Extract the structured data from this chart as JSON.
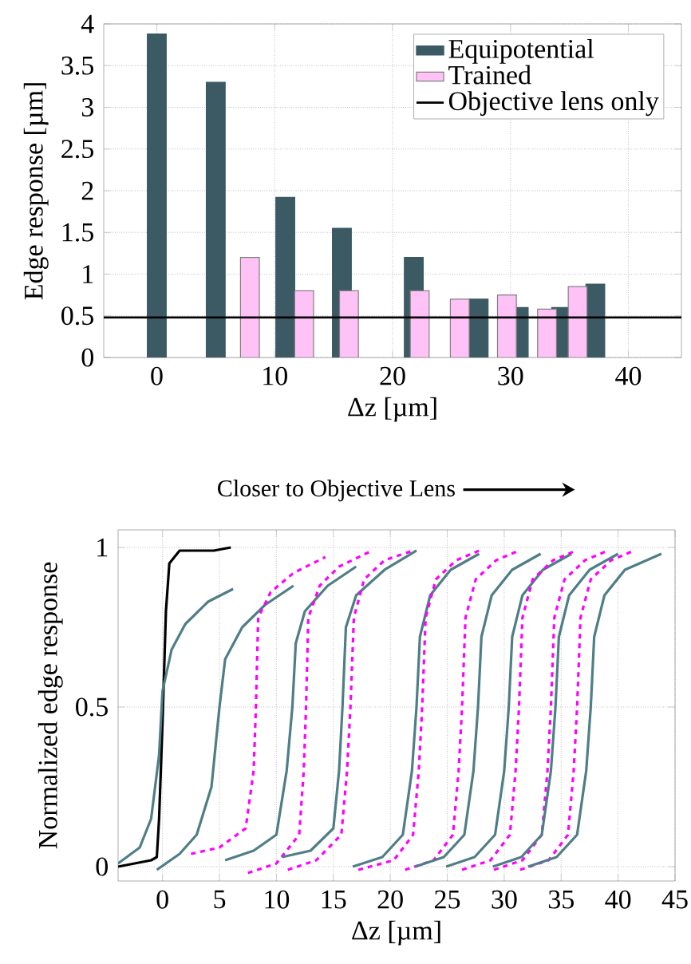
{
  "chart_data": [
    {
      "type": "bar",
      "xlabel": "Δz [µm]",
      "ylabel": "Edge response [µm]",
      "xlim": [
        -4.5,
        44.5
      ],
      "ylim": [
        0,
        4
      ],
      "xticks": [
        0,
        10,
        20,
        30,
        40
      ],
      "yticks": [
        0,
        0.5,
        1,
        1.5,
        2,
        2.5,
        3,
        3.5,
        4
      ],
      "grid": true,
      "legend": "top right",
      "series": [
        {
          "name": "Equipotential",
          "color": "#3b5a63",
          "x": [
            0,
            5,
            10.9,
            15.7,
            21.8,
            27.3,
            30.7,
            34.3,
            37.2
          ],
          "values": [
            3.88,
            3.3,
            1.92,
            1.55,
            1.2,
            0.7,
            0.6,
            0.6,
            0.88
          ]
        },
        {
          "name": "Trained",
          "color": "#ffc2f7",
          "x": [
            7.9,
            12.5,
            16.3,
            22.3,
            25.7,
            29.7,
            33.1,
            35.7
          ],
          "values": [
            1.2,
            0.8,
            0.8,
            0.8,
            0.7,
            0.75,
            0.58,
            0.85
          ]
        }
      ],
      "ref_lines": [
        {
          "axis": "y",
          "value": 0.48,
          "label": "Objective lens only",
          "color": "#000000"
        }
      ]
    },
    {
      "type": "line",
      "title": "Closer to Objective Lens",
      "xlabel": "Δz [µm]",
      "ylabel": "Normalized edge response",
      "xlim": [
        -3.9,
        45
      ],
      "ylim": [
        -0.045,
        1.055
      ],
      "xticks": [
        0,
        5,
        10,
        15,
        20,
        25,
        30,
        35,
        40,
        45
      ],
      "yticks": [
        0,
        0.5,
        1
      ],
      "grid": true,
      "series": [
        {
          "color": "#000000",
          "line_style": "solid",
          "x": [
            -3.9,
            -1,
            -0.5,
            -0.3,
            0,
            0.3,
            0.6,
            1.5,
            3,
            4.5,
            6
          ],
          "values": [
            0,
            0.02,
            0.03,
            0.15,
            0.45,
            0.8,
            0.95,
            0.99,
            0.99,
            0.99,
            1.0
          ]
        },
        {
          "color": "#4f7e87",
          "line_style": "solid",
          "x": [
            -3.9,
            -2,
            -1,
            -0.3,
            0,
            0.8,
            2,
            4,
            6.2
          ],
          "values": [
            0.01,
            0.06,
            0.15,
            0.35,
            0.55,
            0.68,
            0.76,
            0.83,
            0.87
          ]
        },
        {
          "color": "#4f7e87",
          "line_style": "solid",
          "x": [
            -0.5,
            1.5,
            3,
            4.3,
            5,
            5.5,
            7,
            9,
            11.5
          ],
          "values": [
            -0.01,
            0.04,
            0.1,
            0.25,
            0.5,
            0.65,
            0.75,
            0.82,
            0.88
          ]
        },
        {
          "color": "#ff00ff",
          "line_style": "dashed",
          "x": [
            2.5,
            5,
            7.3,
            8,
            8.2,
            8.4,
            9.5,
            11.5,
            14.3
          ],
          "values": [
            0.04,
            0.06,
            0.12,
            0.3,
            0.5,
            0.78,
            0.86,
            0.92,
            0.97
          ]
        },
        {
          "color": "#4f7e87",
          "line_style": "solid",
          "x": [
            5.5,
            8,
            10,
            10.9,
            11.4,
            11.7,
            12.5,
            14.5,
            17
          ],
          "values": [
            0.02,
            0.05,
            0.1,
            0.3,
            0.5,
            0.7,
            0.8,
            0.88,
            0.94
          ]
        },
        {
          "color": "#ff00ff",
          "line_style": "dashed",
          "x": [
            7.5,
            10,
            12,
            12.4,
            12.6,
            12.8,
            13.8,
            15.5,
            18.4
          ],
          "values": [
            -0.02,
            0.01,
            0.1,
            0.3,
            0.5,
            0.78,
            0.88,
            0.94,
            0.99
          ]
        },
        {
          "color": "#4f7e87",
          "line_style": "solid",
          "x": [
            10.5,
            13,
            15,
            15.5,
            15.8,
            16.1,
            17,
            19.5,
            22.3
          ],
          "values": [
            0.03,
            0.05,
            0.12,
            0.3,
            0.5,
            0.75,
            0.85,
            0.93,
            0.99
          ]
        },
        {
          "color": "#ff00ff",
          "line_style": "dashed",
          "x": [
            11,
            13.5,
            15.7,
            16.2,
            16.5,
            16.8,
            17.7,
            19.5,
            22
          ],
          "values": [
            -0.01,
            0.02,
            0.1,
            0.3,
            0.5,
            0.78,
            0.9,
            0.96,
            0.99
          ]
        },
        {
          "color": "#4f7e87",
          "line_style": "solid",
          "x": [
            16.7,
            19.3,
            21.1,
            21.9,
            22.3,
            22.6,
            23.5,
            25.3,
            27.8
          ],
          "values": [
            0.0,
            0.03,
            0.1,
            0.3,
            0.5,
            0.72,
            0.85,
            0.93,
            0.98
          ]
        },
        {
          "color": "#ff00ff",
          "line_style": "dashed",
          "x": [
            17.2,
            20.3,
            22,
            22.5,
            22.8,
            23.1,
            24,
            25.8,
            27.8
          ],
          "values": [
            -0.01,
            0.02,
            0.1,
            0.3,
            0.5,
            0.78,
            0.9,
            0.96,
            0.99
          ]
        },
        {
          "color": "#ff00ff",
          "line_style": "dashed",
          "x": [
            21.3,
            23.8,
            25.5,
            26,
            26.3,
            26.6,
            27.5,
            29.3,
            31.3
          ],
          "values": [
            -0.01,
            0.02,
            0.1,
            0.3,
            0.5,
            0.78,
            0.9,
            0.96,
            0.99
          ]
        },
        {
          "color": "#4f7e87",
          "line_style": "solid",
          "x": [
            22.2,
            24.7,
            26.5,
            27.3,
            27.7,
            28,
            28.9,
            30.7,
            33.2
          ],
          "values": [
            0.0,
            0.03,
            0.1,
            0.3,
            0.5,
            0.72,
            0.85,
            0.93,
            0.98
          ]
        },
        {
          "color": "#4f7e87",
          "line_style": "solid",
          "x": [
            24.9,
            27.4,
            29.2,
            30,
            30.4,
            30.7,
            31.6,
            33.4,
            35.9
          ],
          "values": [
            0.0,
            0.03,
            0.1,
            0.3,
            0.5,
            0.72,
            0.85,
            0.93,
            0.98
          ]
        },
        {
          "color": "#ff00ff",
          "line_style": "dashed",
          "x": [
            26.3,
            28.8,
            30.5,
            31,
            31.3,
            31.6,
            32.5,
            34.3,
            36.3
          ],
          "values": [
            -0.01,
            0.02,
            0.1,
            0.3,
            0.5,
            0.78,
            0.9,
            0.96,
            0.99
          ]
        },
        {
          "color": "#ff00ff",
          "line_style": "dashed",
          "x": [
            29.1,
            31.6,
            33.3,
            33.8,
            34.1,
            34.4,
            35.3,
            37.1,
            39.1
          ],
          "values": [
            -0.01,
            0.02,
            0.1,
            0.3,
            0.5,
            0.78,
            0.9,
            0.96,
            0.99
          ]
        },
        {
          "color": "#4f7e87",
          "line_style": "solid",
          "x": [
            29,
            31.5,
            33.3,
            34.1,
            34.5,
            34.8,
            35.7,
            37.5,
            40
          ],
          "values": [
            0.0,
            0.03,
            0.1,
            0.3,
            0.5,
            0.72,
            0.85,
            0.93,
            0.98
          ]
        },
        {
          "color": "#ff00ff",
          "line_style": "dashed",
          "x": [
            31.4,
            33.9,
            35.6,
            36.1,
            36.4,
            36.7,
            37.6,
            39.4,
            41.4
          ],
          "values": [
            -0.01,
            0.02,
            0.1,
            0.3,
            0.5,
            0.78,
            0.9,
            0.96,
            0.99
          ]
        },
        {
          "color": "#4f7e87",
          "line_style": "solid",
          "x": [
            32.1,
            34.6,
            36.4,
            37.2,
            37.6,
            37.9,
            38.8,
            40.6,
            43.8
          ],
          "values": [
            0.0,
            0.03,
            0.1,
            0.3,
            0.5,
            0.72,
            0.85,
            0.93,
            0.98
          ]
        }
      ]
    }
  ]
}
